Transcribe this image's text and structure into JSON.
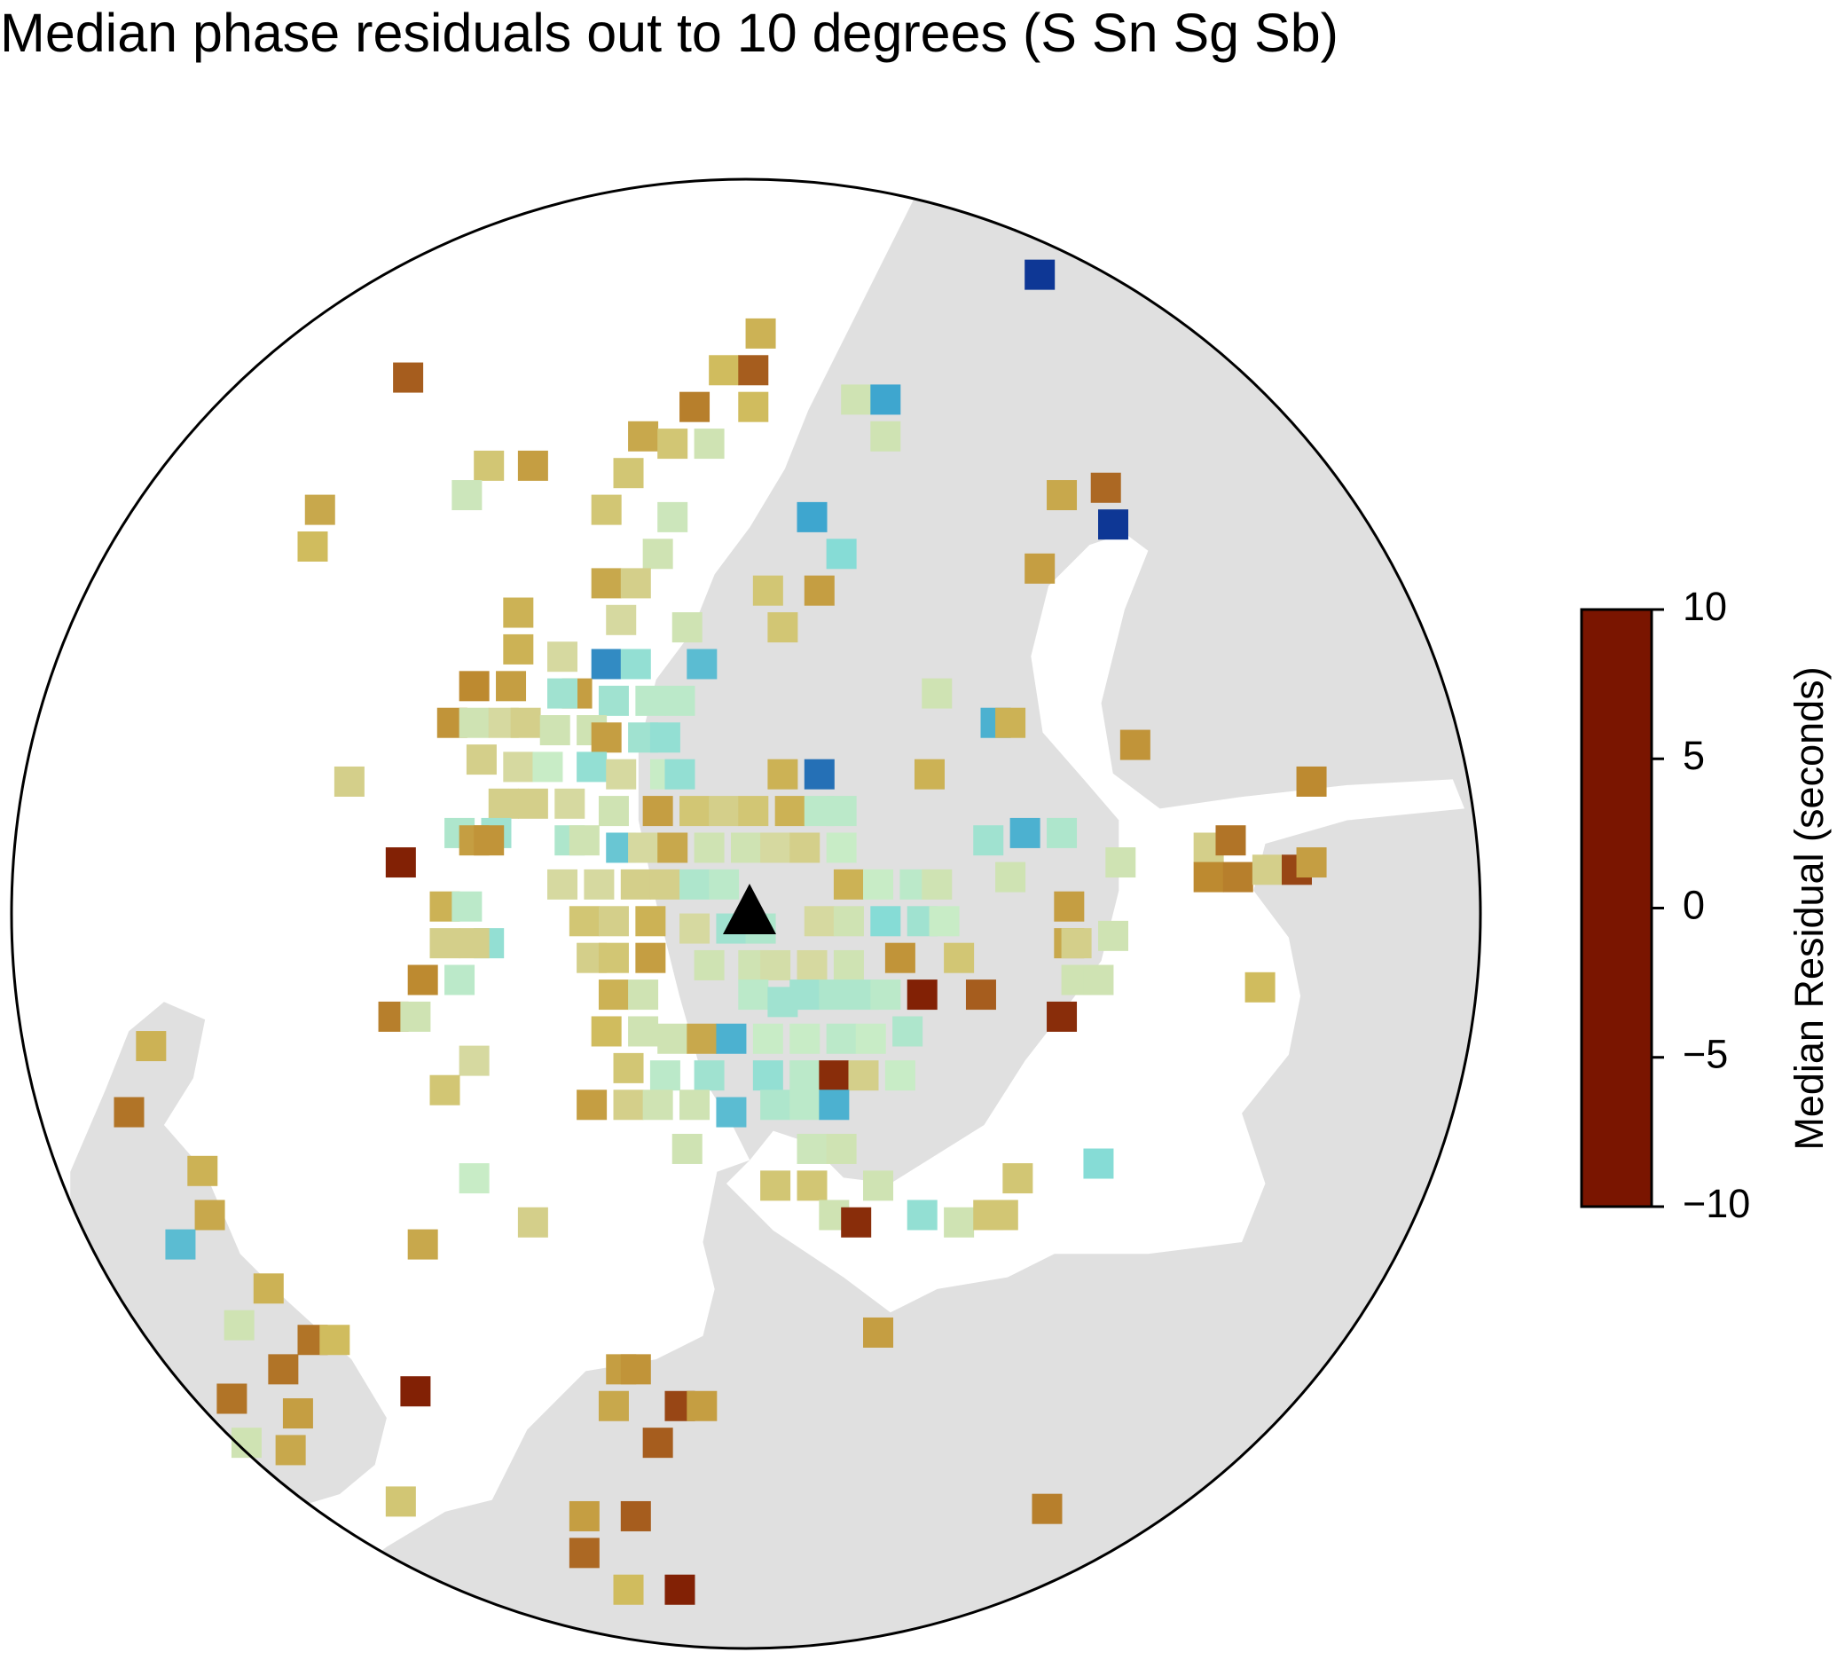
{
  "chart_data": {
    "type": "residual-map",
    "title": "Median phase residuals out to 10 degrees (S Sn Sg Sb)",
    "colorbar_label": "Median Residual (seconds)",
    "xlim": [
      -10,
      10
    ],
    "ylim": [
      -10,
      10
    ],
    "clim": [
      -10,
      10
    ],
    "cticks": [
      10,
      5,
      0,
      {
        "value": -5,
        "label": "−5"
      },
      {
        "value": -10,
        "label": "−10"
      }
    ],
    "colormap": [
      {
        "value": -10,
        "color": "#7a1500"
      },
      {
        "value": -7.5,
        "color": "#a0521a"
      },
      {
        "value": -5,
        "color": "#bd8a30"
      },
      {
        "value": -2.5,
        "color": "#d0bc5e"
      },
      {
        "value": -1,
        "color": "#d6d9a0"
      },
      {
        "value": 0,
        "color": "#c8ecc6"
      },
      {
        "value": 2.5,
        "color": "#86dcd6"
      },
      {
        "value": 5,
        "color": "#3ea6cf"
      },
      {
        "value": 7.5,
        "color": "#1f62b0"
      },
      {
        "value": 10,
        "color": "#0a2c8e"
      }
    ],
    "x": [
      4.0,
      0.2,
      -0.3,
      0.1,
      -4.6,
      -0.7,
      0.1,
      1.5,
      1.9,
      -1.4,
      -1.0,
      -0.5,
      1.9,
      -3.5,
      -2.9,
      -1.6,
      -3.8,
      -5.8,
      -1.9,
      -1.0,
      4.3,
      4.9,
      0.9,
      5.0,
      -5.9,
      -1.2,
      1.3,
      4.0,
      -1.9,
      -1.5,
      0.3,
      1.0,
      -1.7,
      0.5,
      -3.1,
      -0.8,
      -3.1,
      -2.5,
      -1.9,
      -1.5,
      -0.6,
      -3.7,
      -3.2,
      -2.3,
      -2.5,
      -1.8,
      -1.3,
      -0.9,
      2.6,
      -4.0,
      -3.7,
      -3.3,
      -3.0,
      -2.6,
      -2.1,
      -1.9,
      -1.4,
      -1.1,
      3.4,
      3.6,
      5.3,
      -3.6,
      -3.1,
      -2.7,
      -2.1,
      -1.7,
      -1.1,
      -0.9,
      2.5,
      1.0,
      0.5,
      7.7,
      -5.4,
      -3.3,
      -2.9,
      -2.4,
      -1.8,
      -1.2,
      -0.7,
      -0.3,
      0.1,
      0.6,
      1.0,
      1.3,
      -3.9,
      -3.4,
      -2.4,
      -2.2,
      -1.7,
      -1.4,
      -1.0,
      -0.5,
      0.0,
      0.4,
      0.8,
      1.3,
      3.3,
      3.8,
      4.3,
      3.6,
      5.1,
      6.3,
      6.6,
      6.3,
      6.7,
      7.1,
      7.5,
      7.7,
      -4.7,
      -3.7,
      -3.5,
      -2.5,
      -2.0,
      -1.5,
      -1.1,
      -0.7,
      -0.3,
      1.4,
      1.8,
      2.3,
      2.6,
      4.4,
      -4.1,
      -3.8,
      -2.2,
      -1.8,
      -1.3,
      -0.7,
      -0.2,
      0.2,
      1.0,
      1.4,
      1.9,
      2.4,
      2.7,
      4.4,
      4.5,
      5.0,
      -3.5,
      -4.1,
      -3.7,
      -2.1,
      -1.8,
      -1.3,
      -0.5,
      0.1,
      0.4,
      0.9,
      1.4,
      2.1,
      2.9,
      -4.4,
      -3.9,
      -1.8,
      -1.4,
      0.1,
      0.5,
      0.8,
      1.2,
      1.6,
      1.9,
      2.4,
      3.2,
      4.5,
      4.8,
      4.3,
      -4.8,
      -4.5,
      7.0,
      -8.1,
      -1.9,
      -1.4,
      -1.0,
      -0.6,
      -0.2,
      0.3,
      0.8,
      1.3,
      1.7,
      2.2,
      -3.7,
      -1.6,
      -1.1,
      -0.5,
      0.3,
      0.8,
      1.2,
      1.6,
      2.1,
      -4.1,
      -8.4,
      -2.1,
      -1.6,
      -1.2,
      -0.7,
      -0.2,
      0.4,
      0.8,
      1.2,
      -0.8,
      0.9,
      1.3,
      4.8,
      -7.4,
      0.4,
      0.9,
      1.8,
      -3.7,
      3.7,
      -7.3,
      1.2,
      1.5,
      2.4,
      2.9,
      3.3,
      3.5,
      -2.9,
      -7.7,
      -4.4,
      -6.5,
      -6.9,
      -5.9,
      -5.6,
      1.8,
      -6.3,
      -1.7,
      -1.5,
      -4.5,
      -7.0,
      -1.8,
      -0.9,
      -0.6,
      -6.1,
      -6.8,
      -6.2,
      -1.2,
      -4.7,
      4.1,
      -2.2,
      -1.5,
      -2.2,
      -1.6,
      -0.9
    ],
    "y": [
      8.7,
      7.9,
      7.4,
      7.4,
      7.3,
      6.9,
      6.9,
      7.0,
      7.0,
      6.5,
      6.4,
      6.4,
      6.5,
      6.1,
      6.1,
      6.0,
      5.7,
      5.5,
      5.5,
      5.4,
      5.7,
      5.8,
      5.4,
      5.3,
      5.0,
      4.9,
      4.9,
      4.7,
      4.5,
      4.5,
      4.4,
      4.4,
      4.0,
      3.9,
      4.1,
      3.9,
      3.6,
      3.5,
      3.4,
      3.4,
      3.4,
      3.1,
      3.1,
      3.0,
      3.0,
      2.9,
      2.9,
      2.9,
      3.0,
      2.6,
      2.6,
      2.6,
      2.6,
      2.5,
      2.5,
      2.4,
      2.4,
      2.4,
      2.6,
      2.6,
      2.3,
      2.1,
      2.0,
      2.0,
      2.0,
      1.9,
      1.9,
      1.9,
      1.9,
      1.9,
      1.9,
      1.8,
      1.8,
      1.5,
      1.5,
      1.5,
      1.4,
      1.4,
      1.4,
      1.4,
      1.4,
      1.4,
      1.4,
      1.4,
      1.1,
      1.1,
      1.0,
      1.0,
      0.9,
      0.9,
      0.9,
      0.9,
      0.9,
      0.9,
      0.9,
      0.9,
      1.0,
      1.1,
      1.1,
      0.5,
      0.7,
      0.9,
      1.0,
      0.5,
      0.5,
      0.6,
      0.6,
      0.7,
      0.7,
      1.0,
      1.0,
      0.4,
      0.4,
      0.4,
      0.4,
      0.4,
      0.4,
      0.4,
      0.4,
      0.4,
      0.4,
      0.1,
      0.1,
      0.1,
      -0.1,
      -0.1,
      -0.1,
      -0.2,
      -0.2,
      -0.2,
      -0.1,
      -0.1,
      -0.1,
      -0.1,
      -0.1,
      -0.4,
      -0.4,
      -0.3,
      -0.4,
      -0.4,
      -0.4,
      -0.6,
      -0.6,
      -0.6,
      -0.7,
      -0.7,
      -0.7,
      -0.7,
      -0.7,
      -0.6,
      -0.6,
      -0.9,
      -0.9,
      -1.1,
      -1.1,
      -1.1,
      -1.2,
      -1.1,
      -1.1,
      -1.1,
      -1.1,
      -1.1,
      -1.1,
      -0.9,
      -0.9,
      -1.4,
      -1.4,
      -1.4,
      -1.0,
      -1.8,
      -1.6,
      -1.6,
      -1.7,
      -1.7,
      -1.7,
      -1.7,
      -1.7,
      -1.7,
      -1.7,
      -1.6,
      -2.0,
      -2.1,
      -2.2,
      -2.2,
      -2.2,
      -2.2,
      -2.2,
      -2.2,
      -2.2,
      -2.4,
      -2.7,
      -2.6,
      -2.6,
      -2.6,
      -2.6,
      -2.7,
      -2.6,
      -2.6,
      -2.6,
      -3.2,
      -3.2,
      -3.2,
      -3.4,
      -3.5,
      -3.7,
      -3.7,
      -3.7,
      -3.6,
      -3.6,
      -4.1,
      -4.1,
      -4.2,
      -4.1,
      -4.2,
      -4.1,
      -4.1,
      -4.2,
      -4.5,
      -4.5,
      -5.1,
      -5.6,
      -5.8,
      -5.8,
      -5.7,
      -6.2,
      -6.2,
      -6.2,
      -6.5,
      -6.6,
      -6.7,
      -6.7,
      -6.7,
      -6.8,
      -7.2,
      -7.3,
      -7.2,
      -8.0,
      -8.1,
      -8.2,
      -8.2,
      -8.7,
      -9.2,
      -9.2
    ],
    "values": [
      9.5,
      -3,
      -2.5,
      -7,
      -7,
      -5.5,
      -2.5,
      -0.5,
      5,
      -3.5,
      -2,
      -0.5,
      -0.5,
      -2,
      -4,
      -2,
      -0.3,
      -3.5,
      -2,
      -0.3,
      -3.5,
      -6.5,
      5,
      9.5,
      -2.5,
      -0.5,
      2.5,
      -4,
      -3.5,
      -1.5,
      -2,
      -4,
      -1,
      -2,
      -3,
      -0.5,
      -3,
      -1,
      6,
      2,
      4,
      -5,
      -4,
      -4,
      1.5,
      1.5,
      0.5,
      0.5,
      -0.5,
      -4.5,
      -0.5,
      -1,
      -1.5,
      -0.5,
      -0.5,
      -4,
      1.5,
      2,
      4.5,
      -3,
      -4.5,
      -1.5,
      -1,
      0,
      2,
      -1,
      0,
      2,
      -3,
      7,
      -3,
      -5,
      -1.5,
      -1.5,
      -1.5,
      -1,
      -0.5,
      -4,
      -2,
      -1.5,
      -2,
      -3,
      0.5,
      0.5,
      1,
      1.5,
      1,
      -0.5,
      3.5,
      -1,
      -3.5,
      -0.5,
      -0.5,
      -1,
      -1.5,
      0,
      1.5,
      4.5,
      1,
      -0.5,
      -0.5,
      -1.5,
      -6,
      -5,
      -5.5,
      -1.5,
      -8,
      -4,
      -9.5,
      -4,
      -4.5,
      -1,
      -1,
      -1.5,
      -1.5,
      1,
      0.5,
      -3,
      0,
      0.5,
      -0.5,
      -4,
      -3,
      0.5,
      -2,
      -1.5,
      -3,
      -1,
      1.5,
      1,
      -1,
      -0.5,
      2.5,
      1.5,
      0,
      -3.5,
      -1.5,
      -0.5,
      2,
      -1.5,
      -1.5,
      -1.5,
      -2,
      -4,
      -0.5,
      -0.5,
      -0.8,
      -1,
      -0.5,
      -4.5,
      -2,
      -5,
      0.5,
      -3,
      -0.5,
      0.5,
      1.5,
      1.5,
      1,
      1,
      0.5,
      -9.5,
      -7,
      -0.5,
      -0.5,
      -9,
      -5.5,
      -0.5,
      -2.5,
      -3,
      -2.5,
      -0.5,
      -0.5,
      -3.5,
      4.5,
      0,
      0,
      0.5,
      0,
      1,
      -1,
      -2,
      0.5,
      1.5,
      2,
      0.5,
      -9,
      -1.5,
      0,
      -2,
      -6,
      -4,
      -1.5,
      -0.5,
      -0.5,
      4,
      1,
      0.5,
      4.5,
      -0.5,
      -0.3,
      -0.5,
      2.5,
      -3,
      -2,
      -2,
      -0.5,
      0,
      -2,
      -3.5,
      -0.5,
      -9,
      2,
      -0.5,
      -2,
      -2,
      -1.5,
      4,
      -3.5,
      -3,
      -0.5,
      -6,
      -2.5,
      -4,
      -6,
      -4,
      -4.5,
      -9.5,
      -6,
      -3.5,
      -8,
      -4,
      -4,
      -0.5,
      -3.5,
      -7,
      -2,
      -5.5,
      -4,
      -7,
      -6.5,
      -2.5,
      -9.5
    ]
  }
}
